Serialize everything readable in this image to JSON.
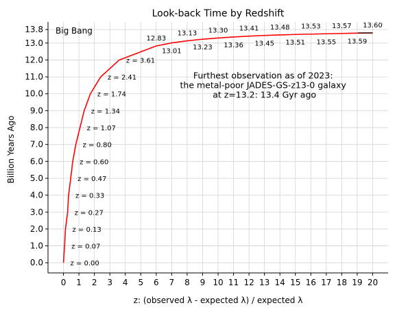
{
  "chart_data": {
    "type": "line",
    "title": "Look-back Time by Redshift",
    "xlabel": "z: (observed λ - expected λ) / expected λ",
    "ylabel": "Billion Years Ago",
    "xlim": [
      -1,
      21
    ],
    "ylim": [
      -0.6,
      14.25
    ],
    "grid": true,
    "x_ticks": [
      0,
      1,
      2,
      3,
      4,
      5,
      6,
      7,
      8,
      9,
      10,
      11,
      12,
      13,
      14,
      15,
      16,
      17,
      18,
      19,
      20
    ],
    "y_ticks": [
      0.0,
      1.0,
      2.0,
      3.0,
      4.0,
      5.0,
      6.0,
      7.0,
      8.0,
      9.0,
      10.0,
      11.0,
      12.0,
      13.0,
      13.8
    ],
    "y_tick_labels": [
      "0.0",
      "1.0",
      "2.0",
      "3.0",
      "4.0",
      "5.0",
      "6.0",
      "7.0",
      "8.0",
      "9.0",
      "10.0",
      "11.0",
      "12.0",
      "13.0",
      "13.8"
    ],
    "series": [
      {
        "color": "#ff0000",
        "x": [
          0,
          0.07,
          0.13,
          0.27,
          0.33,
          0.47,
          0.6,
          0.8,
          1.07,
          1.34,
          1.74,
          2.41,
          3.61,
          6,
          7,
          8,
          9,
          10,
          11,
          12,
          13,
          14,
          15,
          16,
          17,
          18,
          19,
          20
        ],
        "y": [
          0,
          1,
          2,
          3,
          4,
          5,
          6,
          7,
          8,
          9,
          10,
          11,
          12,
          12.83,
          13.01,
          13.13,
          13.23,
          13.3,
          13.36,
          13.41,
          13.45,
          13.48,
          13.51,
          13.53,
          13.55,
          13.57,
          13.59,
          13.6
        ]
      }
    ],
    "z_labels": [
      {
        "text": "z = 0.00",
        "x": 0,
        "y": 0
      },
      {
        "text": "z = 0.07",
        "x": 0.07,
        "y": 1
      },
      {
        "text": "z = 0.13",
        "x": 0.13,
        "y": 2
      },
      {
        "text": "z = 0.27",
        "x": 0.27,
        "y": 3
      },
      {
        "text": "z = 0.33",
        "x": 0.33,
        "y": 4
      },
      {
        "text": "z = 0.47",
        "x": 0.47,
        "y": 5
      },
      {
        "text": "z = 0.60",
        "x": 0.6,
        "y": 6
      },
      {
        "text": "z = 0.80",
        "x": 0.8,
        "y": 7
      },
      {
        "text": "z = 1.07",
        "x": 1.07,
        "y": 8
      },
      {
        "text": "z = 1.34",
        "x": 1.34,
        "y": 9
      },
      {
        "text": "z = 1.74",
        "x": 1.74,
        "y": 10
      },
      {
        "text": "z = 2.41",
        "x": 2.41,
        "y": 11
      },
      {
        "text": "z = 3.61",
        "x": 3.61,
        "y": 12
      }
    ],
    "top_labels": [
      {
        "text": "12.83",
        "x": 6,
        "y": 12.83,
        "pos": "above"
      },
      {
        "text": "13.01",
        "x": 7,
        "y": 13.01,
        "pos": "below"
      },
      {
        "text": "13.13",
        "x": 8,
        "y": 13.13,
        "pos": "above"
      },
      {
        "text": "13.23",
        "x": 9,
        "y": 13.23,
        "pos": "below"
      },
      {
        "text": "13.30",
        "x": 10,
        "y": 13.3,
        "pos": "above"
      },
      {
        "text": "13.36",
        "x": 11,
        "y": 13.36,
        "pos": "below"
      },
      {
        "text": "13.41",
        "x": 12,
        "y": 13.41,
        "pos": "above"
      },
      {
        "text": "13.45",
        "x": 13,
        "y": 13.45,
        "pos": "below"
      },
      {
        "text": "13.48",
        "x": 14,
        "y": 13.48,
        "pos": "above"
      },
      {
        "text": "13.51",
        "x": 15,
        "y": 13.51,
        "pos": "below"
      },
      {
        "text": "13.53",
        "x": 16,
        "y": 13.53,
        "pos": "above"
      },
      {
        "text": "13.55",
        "x": 17,
        "y": 13.55,
        "pos": "below"
      },
      {
        "text": "13.57",
        "x": 18,
        "y": 13.57,
        "pos": "above"
      },
      {
        "text": "13.59",
        "x": 19,
        "y": 13.59,
        "pos": "below"
      },
      {
        "text": "13.60",
        "x": 20,
        "y": 13.6,
        "pos": "above"
      }
    ],
    "corner_label": "Big Bang",
    "annotation": {
      "lines": [
        "Furthest observation as of 2023:",
        "the metal-poor JADES-GS-z13-0 galaxy",
        "at z=13.2: 13.4 Gyr ago"
      ],
      "x": 13,
      "y": 10.9
    }
  }
}
